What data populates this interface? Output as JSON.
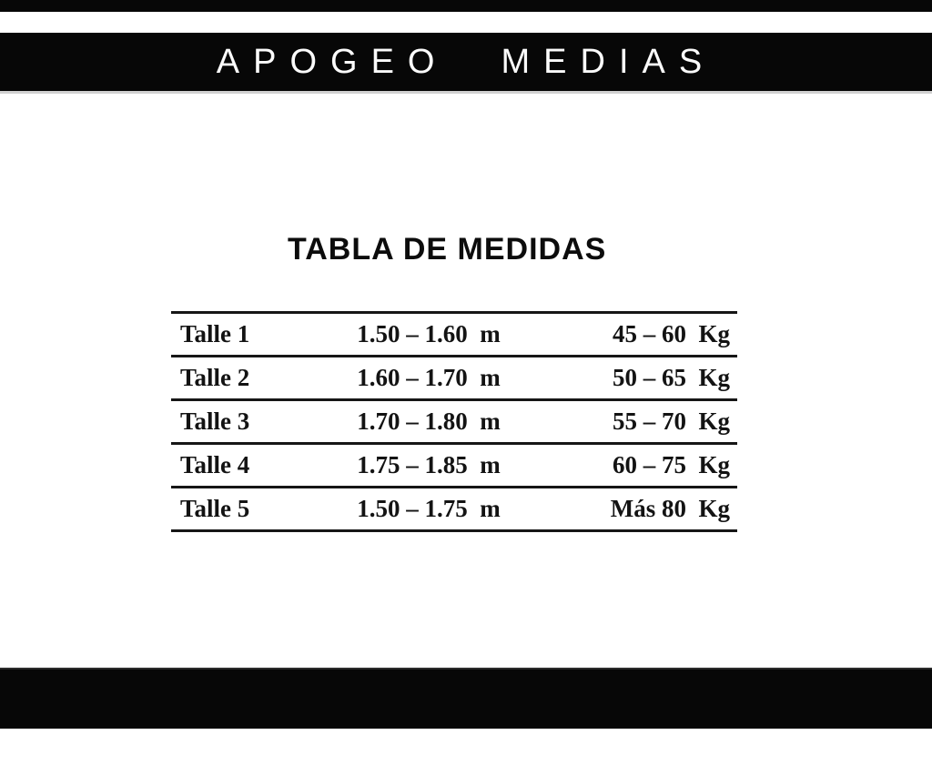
{
  "page": {
    "background": "#ffffff",
    "bar_color": "#070707",
    "text_color": "#131313"
  },
  "header": {
    "brand_word_1": "APOGEO",
    "brand_word_2": "MEDIAS"
  },
  "size_chart": {
    "title": "TABLA DE MEDIDAS",
    "columns": [
      "size",
      "height_range",
      "weight_range"
    ],
    "rows": [
      {
        "size": "Talle 1",
        "height": "1.50 – 1.60  m",
        "weight": "45 – 60  Kg"
      },
      {
        "size": "Talle 2",
        "height": "1.60 – 1.70  m",
        "weight": "50 – 65  Kg"
      },
      {
        "size": "Talle 3",
        "height": "1.70 – 1.80  m",
        "weight": "55 – 70  Kg"
      },
      {
        "size": "Talle 4",
        "height": "1.75 – 1.85  m",
        "weight": "60 – 75  Kg"
      },
      {
        "size": "Talle 5",
        "height": "1.50 – 1.75  m",
        "weight": "Más 80  Kg"
      }
    ]
  }
}
